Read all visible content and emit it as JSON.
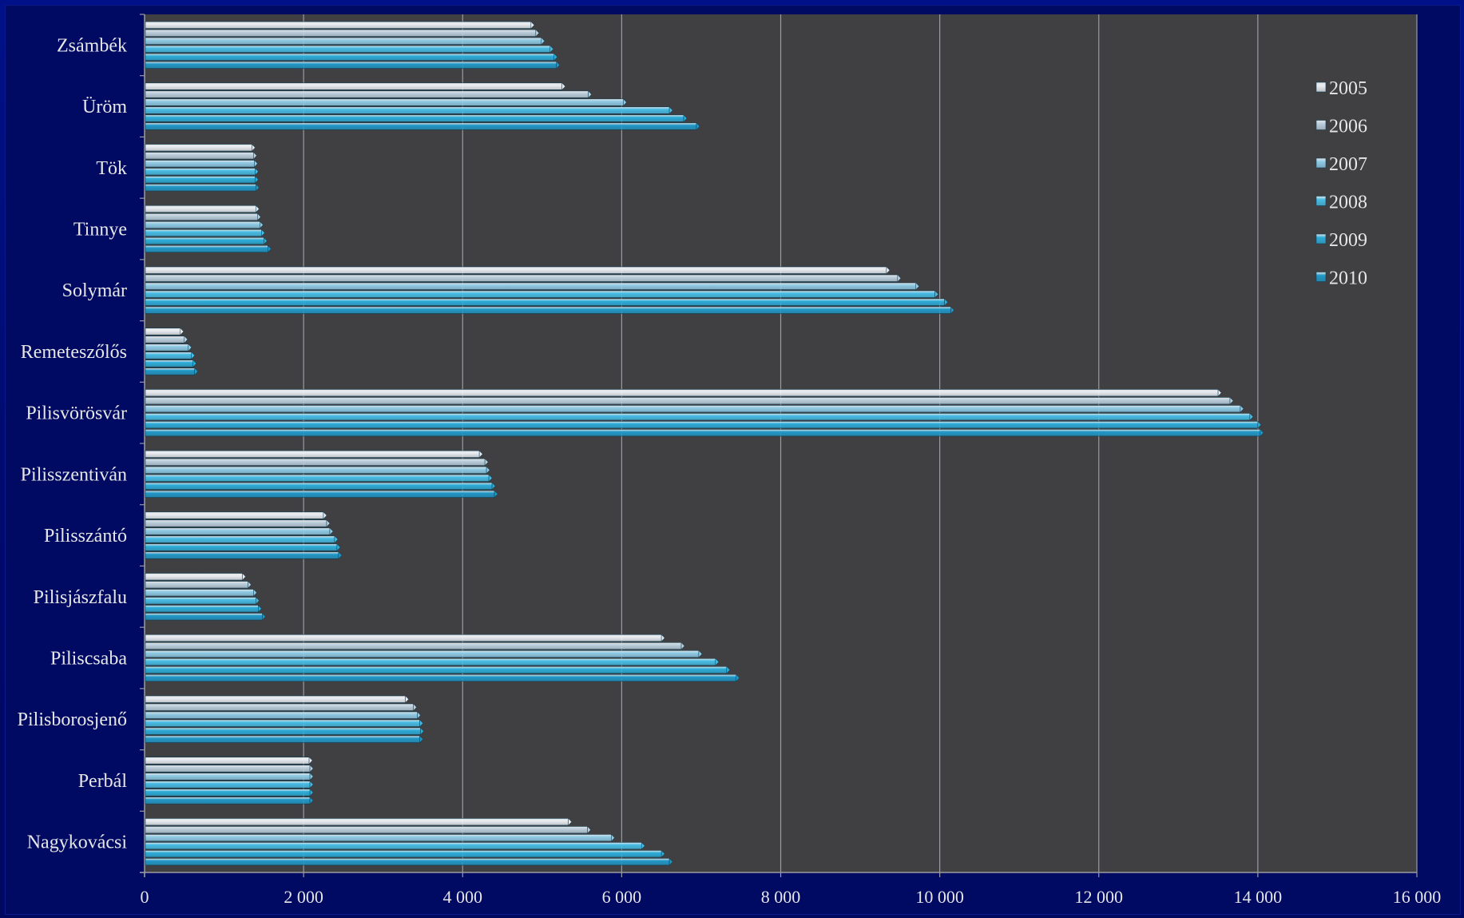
{
  "chart_data": {
    "type": "bar",
    "orientation": "horizontal",
    "categories": [
      "Zsámbék",
      "Üröm",
      "Tök",
      "Tinnye",
      "Solymár",
      "Remeteszőlős",
      "Pilisvörösvár",
      "Pilisszentiván",
      "Pilisszántó",
      "Pilisjászfalu",
      "Piliscsaba",
      "Pilisborosjenő",
      "Perbál",
      "Nagykovácsi"
    ],
    "series": [
      {
        "name": "2005",
        "values": [
          4860,
          5250,
          1350,
          1400,
          9330,
          450,
          13500,
          4210,
          2250,
          1230,
          6500,
          3280,
          2070,
          5330
        ]
      },
      {
        "name": "2006",
        "values": [
          4920,
          5580,
          1370,
          1420,
          9470,
          500,
          13650,
          4280,
          2290,
          1300,
          6750,
          3380,
          2080,
          5570
        ]
      },
      {
        "name": "2007",
        "values": [
          4990,
          6020,
          1380,
          1450,
          9700,
          550,
          13780,
          4300,
          2330,
          1370,
          6970,
          3430,
          2080,
          5870
        ]
      },
      {
        "name": "2008",
        "values": [
          5100,
          6600,
          1390,
          1470,
          9940,
          590,
          13900,
          4330,
          2390,
          1400,
          7180,
          3460,
          2080,
          6250
        ]
      },
      {
        "name": "2009",
        "values": [
          5150,
          6780,
          1390,
          1500,
          10060,
          610,
          14000,
          4370,
          2420,
          1430,
          7320,
          3470,
          2080,
          6500
        ]
      },
      {
        "name": "2010",
        "values": [
          5180,
          6940,
          1400,
          1550,
          10140,
          630,
          14030,
          4400,
          2440,
          1480,
          7440,
          3460,
          2080,
          6600
        ]
      }
    ],
    "xlim": [
      0,
      16000
    ],
    "xticks": [
      0,
      2000,
      4000,
      6000,
      8000,
      10000,
      12000,
      14000,
      16000
    ],
    "xtick_labels": [
      "0",
      "2 000",
      "4 000",
      "6 000",
      "8 000",
      "10 000",
      "12 000",
      "14 000",
      "16 000"
    ],
    "grid": "vertical",
    "legend_position": "right",
    "colors": {
      "plot_bg": "#404043",
      "border": "#0a1a8a",
      "gridline": "#9a9aa2",
      "text": "#e6e6e6",
      "series": [
        "#e9edf2",
        "#bccfdd",
        "#8fcbe6",
        "#46bde6",
        "#2badda",
        "#1f98c8"
      ]
    }
  }
}
